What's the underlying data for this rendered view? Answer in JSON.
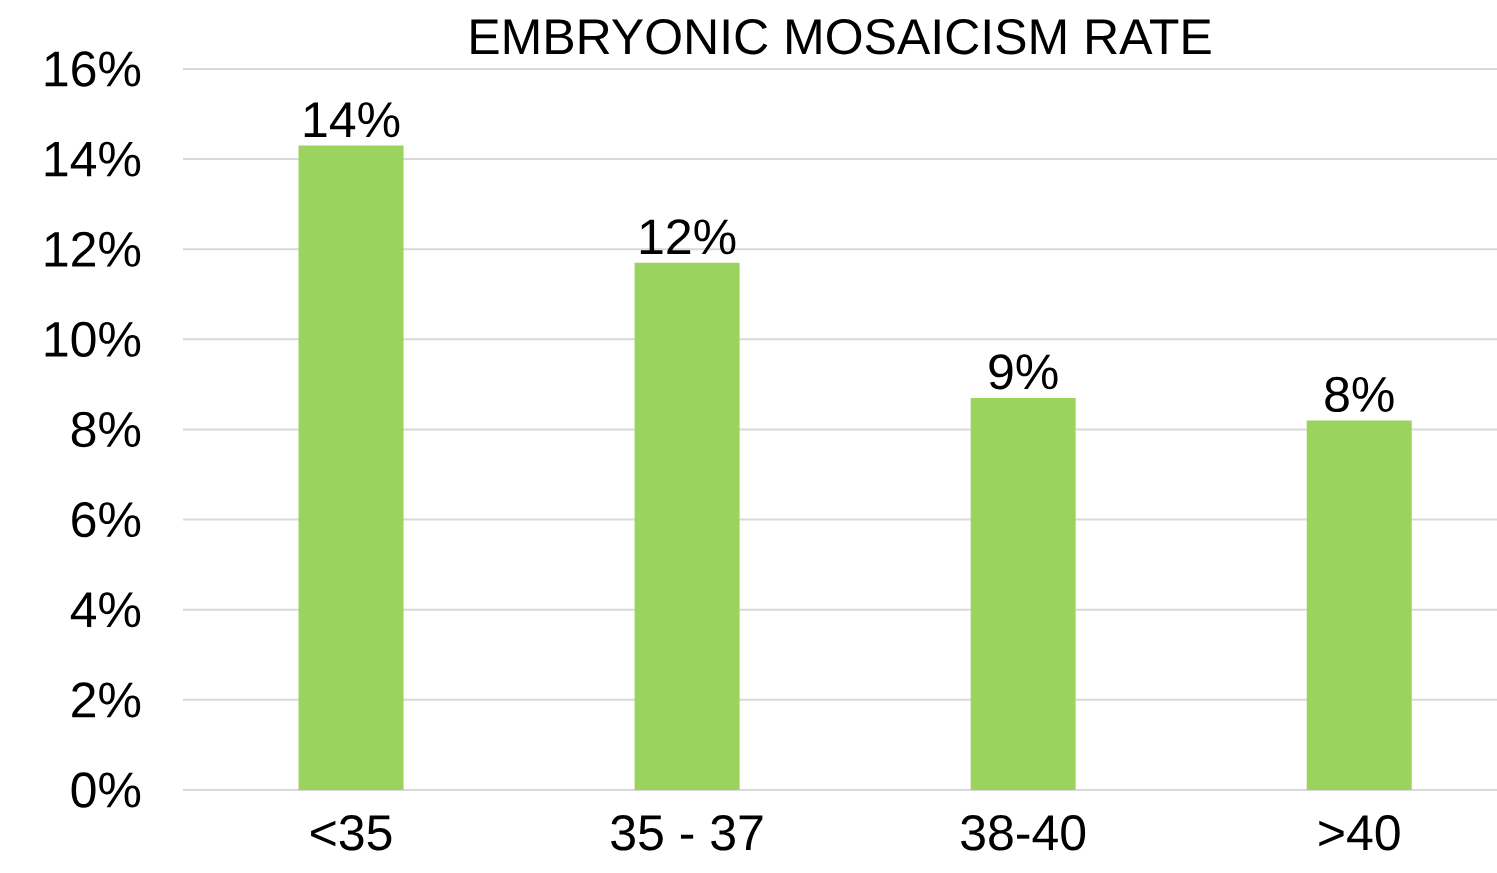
{
  "chart_data": {
    "type": "bar",
    "title": "EMBRYONIC MOSAICISM RATE",
    "categories": [
      "<35",
      "35 - 37",
      "38-40",
      ">40"
    ],
    "values": [
      14.3,
      11.7,
      8.7,
      8.2
    ],
    "value_labels": [
      "14%",
      "12%",
      "9%",
      "8%"
    ],
    "color": "#9bd35f",
    "ylim": [
      0,
      16
    ],
    "yticks": [
      {
        "value": 0,
        "label": "0%"
      },
      {
        "value": 2,
        "label": "2%"
      },
      {
        "value": 4,
        "label": "4%"
      },
      {
        "value": 6,
        "label": "6%"
      },
      {
        "value": 8,
        "label": "8%"
      },
      {
        "value": 10,
        "label": "10%"
      },
      {
        "value": 12,
        "label": "12%"
      },
      {
        "value": 14,
        "label": "14%"
      },
      {
        "value": 16,
        "label": "16%"
      }
    ],
    "grid": "y"
  }
}
